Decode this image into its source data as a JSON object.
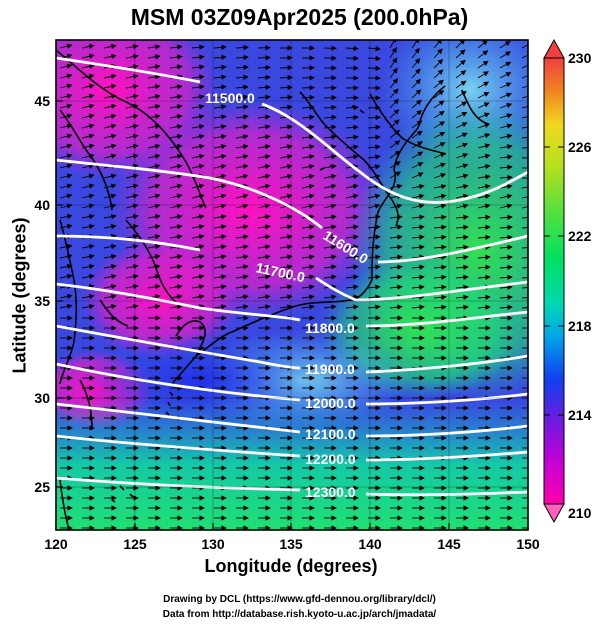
{
  "title": "MSM 03Z09Apr2025 (200.0hPa)",
  "x_axis": {
    "label": "Longitude (degrees)",
    "min": 120,
    "max": 150,
    "ticks": [
      "120",
      "125",
      "130",
      "135",
      "140",
      "145",
      "150"
    ]
  },
  "y_axis": {
    "label": "Latitude  (degrees)",
    "min": 22.4,
    "max": 47.6,
    "ticks": [
      "25",
      "30",
      "35",
      "40",
      "45"
    ]
  },
  "colorbar": {
    "min": 210,
    "max": 230,
    "labels": [
      "210",
      "214",
      "218",
      "222",
      "226",
      "230"
    ],
    "colors": [
      "#ff00aa",
      "#c000d8",
      "#6020e0",
      "#1040f0",
      "#00a8e8",
      "#00d8b0",
      "#00e060",
      "#50e040",
      "#b0e020",
      "#f0d820",
      "#f08020",
      "#f04040"
    ]
  },
  "contours": [
    {
      "label": "11500.0"
    },
    {
      "label": "11600.0"
    },
    {
      "label": "11700.0"
    },
    {
      "label": "11800.0"
    },
    {
      "label": "11900.0"
    },
    {
      "label": "12000.0"
    },
    {
      "label": "12100.0"
    },
    {
      "label": "12200.0"
    },
    {
      "label": "12300.0"
    }
  ],
  "credits": {
    "line1": "Drawing by DCL (https://www.gfd-dennou.org/library/dcl/)",
    "line2": "Data from http://database.rish.kyoto-u.ac.jp/arch/jmadata/"
  }
}
